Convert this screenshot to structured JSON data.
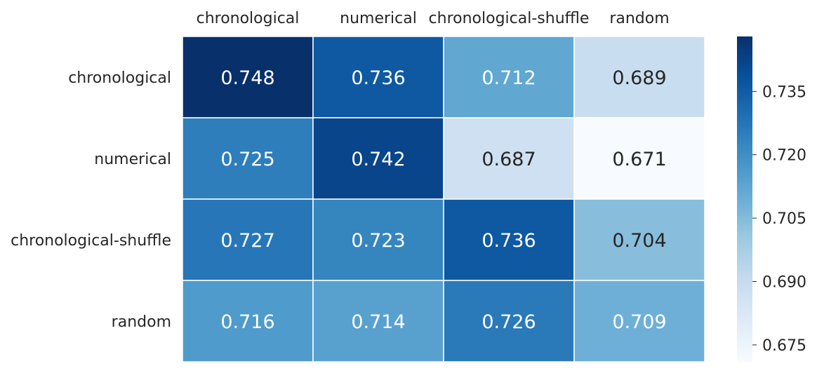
{
  "chart_data": {
    "type": "heatmap",
    "title": "",
    "xlabel": "",
    "ylabel": "",
    "columns": [
      "chronological",
      "numerical",
      "chronological-shuffle",
      "random"
    ],
    "rows": [
      "chronological",
      "numerical",
      "chronological-shuffle",
      "random"
    ],
    "values": [
      [
        0.748,
        0.736,
        0.712,
        0.689
      ],
      [
        0.725,
        0.742,
        0.687,
        0.671
      ],
      [
        0.727,
        0.723,
        0.736,
        0.704
      ],
      [
        0.716,
        0.714,
        0.726,
        0.709
      ]
    ],
    "cell_labels": [
      [
        "0.748",
        "0.736",
        "0.712",
        "0.689"
      ],
      [
        "0.725",
        "0.742",
        "0.687",
        "0.671"
      ],
      [
        "0.727",
        "0.723",
        "0.736",
        "0.704"
      ],
      [
        "0.716",
        "0.714",
        "0.726",
        "0.709"
      ]
    ],
    "x_axis_position": "top",
    "colormap": "Blues",
    "colorbar": {
      "range": [
        0.671,
        0.748
      ],
      "ticks": [
        0.675,
        0.69,
        0.705,
        0.72,
        0.735
      ],
      "tick_labels": [
        "0.675",
        "0.690",
        "0.705",
        "0.720",
        "0.735"
      ],
      "position": "right"
    },
    "grid": false
  }
}
